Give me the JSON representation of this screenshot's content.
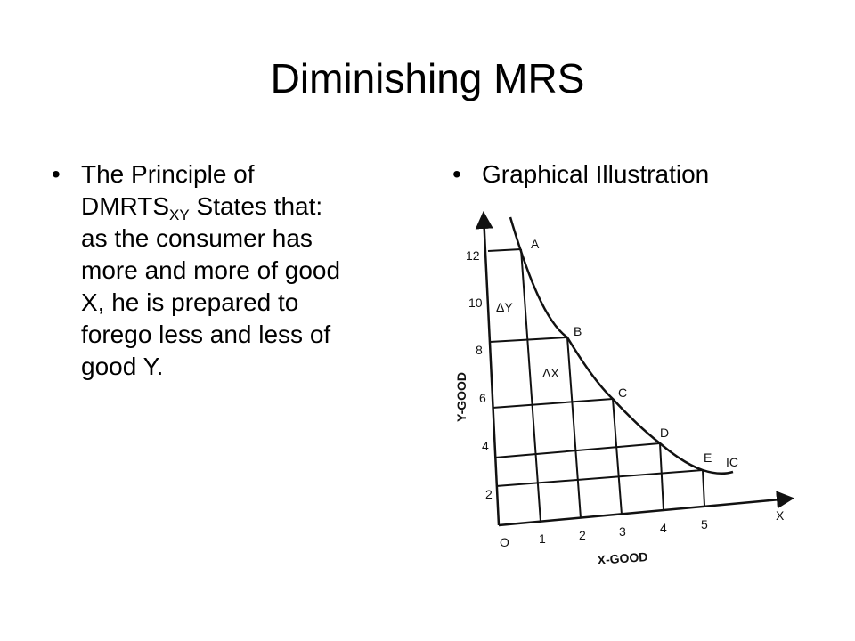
{
  "title": "Diminishing MRS",
  "left_bullet": {
    "line1": "The Principle of",
    "line2_main": "DMRTS",
    "line2_sub": "XY",
    "line2_rest": " States that:",
    "line3": "as the consumer has",
    "line4": "more and more of good",
    "line5": "X, he is prepared to",
    "line6": "forego less and less of",
    "line7": "good Y."
  },
  "right_bullet": {
    "text": "Graphical Illustration"
  },
  "bullet_symbol": "•",
  "diagram": {
    "x_axis_label": "X-GOOD",
    "y_axis_label": "Y-GOOD",
    "x_axis_letter": "X",
    "origin_label": "O",
    "x_ticks": [
      "1",
      "2",
      "3",
      "4",
      "5"
    ],
    "y_ticks": [
      "2",
      "4",
      "6",
      "8",
      "10",
      "12"
    ],
    "points": [
      "A",
      "B",
      "C",
      "D",
      "E"
    ],
    "curve_label": "IC",
    "delta_y": "ΔY",
    "delta_x": "ΔX"
  }
}
